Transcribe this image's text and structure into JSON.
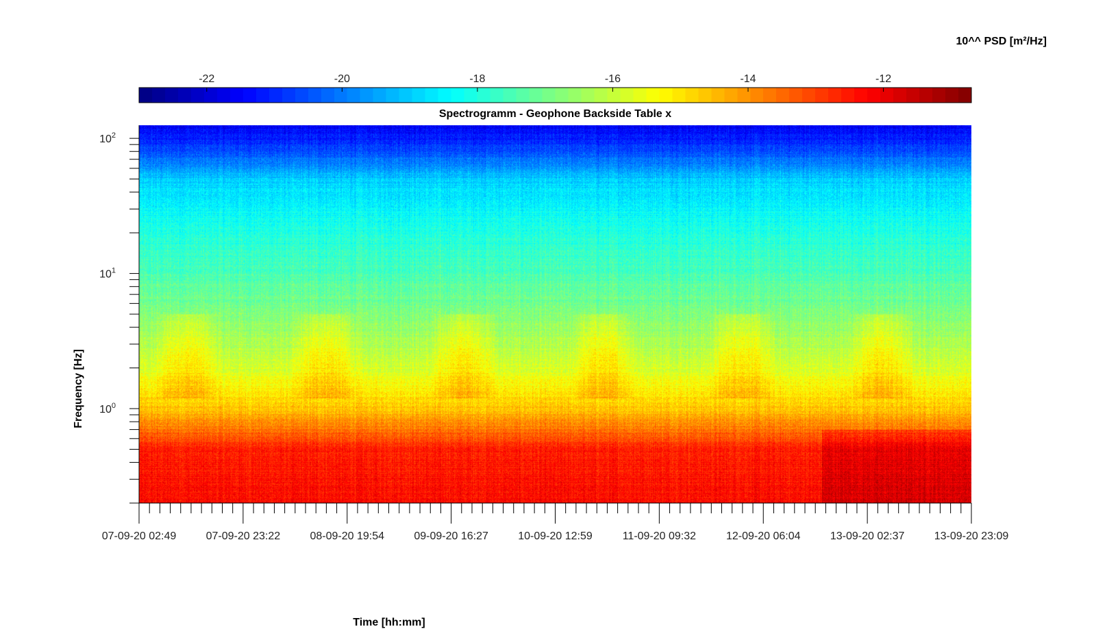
{
  "chart_data": {
    "type": "heatmap",
    "title": "Spectrogramm - Geophone Backside Table x",
    "xlabel": "Time [hh:mm]",
    "ylabel": "Frequency [Hz]",
    "colorbar_label": "10^^ PSD [m²/Hz]",
    "colormap": "jet",
    "colorbar_range": [
      -23.0,
      -10.7
    ],
    "colorbar_ticks": [
      -22,
      -20,
      -18,
      -16,
      -14,
      -12
    ],
    "y_scale": "log",
    "ylim": [
      0.2,
      125
    ],
    "y_ticks": [
      {
        "value": 1,
        "base": "10",
        "exp": "0"
      },
      {
        "value": 10,
        "base": "10",
        "exp": "1"
      },
      {
        "value": 100,
        "base": "10",
        "exp": "2"
      }
    ],
    "x_ticks": [
      "07-09-20 02:49",
      "07-09-20 23:22",
      "08-09-20 19:54",
      "09-09-20 16:27",
      "10-09-20 12:59",
      "11-09-20 09:32",
      "12-09-20 06:04",
      "13-09-20 02:37",
      "13-09-20 23:09"
    ],
    "x_minor_ticks_between_labels": 9,
    "spectrum_profile": [
      {
        "freq_hz": 120,
        "log_psd": -21.5
      },
      {
        "freq_hz": 80,
        "log_psd": -20.5
      },
      {
        "freq_hz": 50,
        "log_psd": -19.0
      },
      {
        "freq_hz": 25,
        "log_psd": -18.2
      },
      {
        "freq_hz": 10,
        "log_psd": -17.5
      },
      {
        "freq_hz": 5,
        "log_psd": -16.8
      },
      {
        "freq_hz": 2,
        "log_psd": -15.8
      },
      {
        "freq_hz": 1,
        "log_psd": -14.6
      },
      {
        "freq_hz": 0.5,
        "log_psd": -12.6
      },
      {
        "freq_hz": 0.2,
        "log_psd": -12.3
      }
    ],
    "colors": {
      "jet": [
        "#00007f",
        "#0000ff",
        "#00ffff",
        "#ffff00",
        "#ff0000",
        "#7f0000"
      ],
      "axis": "#000000",
      "background": "#ffffff"
    }
  }
}
